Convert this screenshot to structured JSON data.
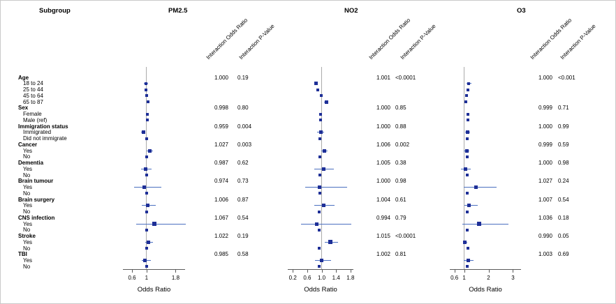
{
  "header": {
    "subgroup": "Subgroup",
    "col_or": "Interaction Odds Ratio",
    "col_p": "Interaction P-Value"
  },
  "colors": {
    "marker": "#1e2f97",
    "ci_line": "#4a6fc0",
    "reference_line": "#ababab",
    "axis": "#5a5a5a"
  },
  "chart_data": {
    "type": "forest",
    "panels": [
      {
        "id": "pm25",
        "title": "PM2.5",
        "xlabel": "Odds Ratio",
        "xlim": [
          0.35,
          2.06
        ],
        "refline": 1,
        "ticks": [
          {
            "v": 0.6,
            "label": "0.6"
          },
          {
            "v": 1,
            "label": "1"
          },
          {
            "v": 1.8,
            "label": "1.8"
          }
        ]
      },
      {
        "id": "no2",
        "title": "NO2",
        "xlabel": "Odds Ratio",
        "xlim": [
          0.06,
          1.88
        ],
        "refline": 1,
        "ticks": [
          {
            "v": 0.2,
            "label": "0.2"
          },
          {
            "v": 0.6,
            "label": "0.6"
          },
          {
            "v": 1.0,
            "label": "1.0"
          },
          {
            "v": 1.4,
            "label": "1.4"
          },
          {
            "v": 1.8,
            "label": "1.8"
          }
        ]
      },
      {
        "id": "o3",
        "title": "O3",
        "xlabel": "Odds Ratio",
        "xlim": [
          0.41,
          3.33
        ],
        "refline": 1,
        "ticks": [
          {
            "v": 0.6,
            "label": "0.6"
          },
          {
            "v": 1,
            "label": "1"
          },
          {
            "v": 2,
            "label": "2"
          },
          {
            "v": 3,
            "label": "3"
          }
        ]
      }
    ],
    "rows": [
      {
        "type": "group",
        "label": "Age",
        "stats": {
          "pm25": {
            "or": "1.000",
            "p": "0.19"
          },
          "no2": {
            "or": "1.001",
            "p": "<0.0001"
          },
          "o3": {
            "or": "1.000",
            "p": "<0.001"
          }
        }
      },
      {
        "type": "level",
        "label": "18 to 24",
        "points": {
          "pm25": [
            0.99,
            0.93,
            1.05,
            4
          ],
          "no2": [
            0.84,
            0.79,
            0.89,
            5
          ],
          "o3": [
            1.19,
            1.09,
            1.29,
            4
          ]
        }
      },
      {
        "type": "level",
        "label": "25 to 44",
        "points": {
          "pm25": [
            0.99,
            0.95,
            1.03,
            4
          ],
          "no2": [
            0.89,
            0.85,
            0.93,
            4
          ],
          "o3": [
            1.16,
            1.1,
            1.22,
            4
          ]
        }
      },
      {
        "type": "level",
        "label": "45 to 64",
        "points": {
          "pm25": [
            1.01,
            0.98,
            1.04,
            4
          ],
          "no2": [
            0.99,
            0.96,
            1.02,
            4
          ],
          "o3": [
            1.1,
            1.06,
            1.14,
            4
          ]
        }
      },
      {
        "type": "level",
        "label": "65 to 87",
        "points": {
          "pm25": [
            1.04,
            1.0,
            1.08,
            4
          ],
          "no2": [
            1.13,
            1.07,
            1.19,
            5
          ],
          "o3": [
            1.07,
            1.02,
            1.12,
            4
          ]
        }
      },
      {
        "type": "group",
        "label": "Sex",
        "stats": {
          "pm25": {
            "or": "0.998",
            "p": "0.80"
          },
          "no2": {
            "or": "1.000",
            "p": "0.85"
          },
          "o3": {
            "or": "0.999",
            "p": "0.71"
          }
        }
      },
      {
        "type": "level",
        "label": "Female",
        "points": {
          "pm25": [
            1.02,
            0.99,
            1.05,
            4
          ],
          "no2": [
            0.97,
            0.94,
            1.0,
            4
          ],
          "o3": [
            1.16,
            1.11,
            1.21,
            4
          ]
        }
      },
      {
        "type": "level",
        "label": "Male (ref)",
        "points": {
          "pm25": [
            1.02,
            0.99,
            1.05,
            4
          ],
          "no2": [
            0.97,
            0.94,
            1.0,
            4
          ],
          "o3": [
            1.16,
            1.11,
            1.21,
            4
          ]
        }
      },
      {
        "type": "group",
        "label": "Immigration status",
        "stats": {
          "pm25": {
            "or": "0.959",
            "p": "0.004"
          },
          "no2": {
            "or": "1.000",
            "p": "0.88"
          },
          "o3": {
            "or": "1.000",
            "p": "0.99"
          }
        }
      },
      {
        "type": "level",
        "label": "Immigrated",
        "points": {
          "pm25": [
            0.91,
            0.85,
            0.97,
            5
          ],
          "no2": [
            0.97,
            0.87,
            1.07,
            5
          ],
          "o3": [
            1.13,
            1.03,
            1.24,
            5
          ]
        }
      },
      {
        "type": "level",
        "label": "Did not immigrate",
        "points": {
          "pm25": [
            1.01,
            0.98,
            1.04,
            4
          ],
          "no2": [
            0.95,
            0.92,
            0.98,
            4
          ],
          "o3": [
            1.13,
            1.09,
            1.17,
            4
          ]
        }
      },
      {
        "type": "group",
        "label": "Cancer",
        "stats": {
          "pm25": {
            "or": "1.027",
            "p": "0.003"
          },
          "no2": {
            "or": "1.006",
            "p": "0.002"
          },
          "o3": {
            "or": "0.999",
            "p": "0.59"
          }
        }
      },
      {
        "type": "level",
        "label": "Yes",
        "points": {
          "pm25": [
            1.09,
            1.01,
            1.17,
            5
          ],
          "no2": [
            1.07,
            0.99,
            1.16,
            5
          ],
          "o3": [
            1.1,
            0.99,
            1.22,
            5
          ]
        }
      },
      {
        "type": "level",
        "label": "No",
        "points": {
          "pm25": [
            1.0,
            0.97,
            1.03,
            4
          ],
          "no2": [
            0.95,
            0.92,
            0.98,
            4
          ],
          "o3": [
            1.13,
            1.09,
            1.17,
            4
          ]
        }
      },
      {
        "type": "group",
        "label": "Dementia",
        "stats": {
          "pm25": {
            "or": "0.987",
            "p": "0.62"
          },
          "no2": {
            "or": "1.005",
            "p": "0.38"
          },
          "o3": {
            "or": "1.000",
            "p": "0.98"
          }
        }
      },
      {
        "type": "level",
        "label": "Yes",
        "points": {
          "pm25": [
            0.98,
            0.84,
            1.13,
            5
          ],
          "no2": [
            1.05,
            0.79,
            1.33,
            5
          ],
          "o3": [
            1.05,
            0.86,
            1.28,
            5
          ]
        }
      },
      {
        "type": "level",
        "label": "No",
        "points": {
          "pm25": [
            1.01,
            0.98,
            1.04,
            4
          ],
          "no2": [
            0.95,
            0.92,
            0.98,
            4
          ],
          "o3": [
            1.13,
            1.09,
            1.17,
            4
          ]
        }
      },
      {
        "type": "group",
        "label": "Brain tumour",
        "stats": {
          "pm25": {
            "or": "0.974",
            "p": "0.73"
          },
          "no2": {
            "or": "1.000",
            "p": "0.98"
          },
          "o3": {
            "or": "1.027",
            "p": "0.24"
          }
        }
      },
      {
        "type": "level",
        "label": "Yes",
        "points": {
          "pm25": [
            0.94,
            0.65,
            1.4,
            5
          ],
          "no2": [
            0.95,
            0.54,
            1.71,
            5
          ],
          "o3": [
            1.47,
            0.97,
            2.33,
            5
          ]
        }
      },
      {
        "type": "level",
        "label": "No",
        "points": {
          "pm25": [
            1.01,
            0.98,
            1.04,
            4
          ],
          "no2": [
            0.95,
            0.92,
            0.98,
            4
          ],
          "o3": [
            1.13,
            1.09,
            1.17,
            4
          ]
        }
      },
      {
        "type": "group",
        "label": "Brain surgery",
        "stats": {
          "pm25": {
            "or": "1.006",
            "p": "0.87"
          },
          "no2": {
            "or": "1.004",
            "p": "0.61"
          },
          "o3": {
            "or": "1.007",
            "p": "0.54"
          }
        }
      },
      {
        "type": "level",
        "label": "Yes",
        "points": {
          "pm25": [
            1.03,
            0.86,
            1.26,
            5
          ],
          "no2": [
            1.05,
            0.8,
            1.36,
            5
          ],
          "o3": [
            1.19,
            1.01,
            1.55,
            5
          ]
        }
      },
      {
        "type": "level",
        "label": "No",
        "points": {
          "pm25": [
            1.01,
            0.98,
            1.04,
            4
          ],
          "no2": [
            0.93,
            0.9,
            0.96,
            4
          ],
          "o3": [
            1.13,
            1.09,
            1.17,
            4
          ]
        }
      },
      {
        "type": "group",
        "label": "CNS infection",
        "stats": {
          "pm25": {
            "or": "1.067",
            "p": "0.54"
          },
          "no2": {
            "or": "0.994",
            "p": "0.79"
          },
          "o3": {
            "or": "1.036",
            "p": "0.18"
          }
        }
      },
      {
        "type": "level",
        "label": "Yes",
        "points": {
          "pm25": [
            1.21,
            0.71,
            2.08,
            6
          ],
          "no2": [
            0.87,
            0.43,
            1.83,
            5
          ],
          "o3": [
            1.62,
            0.93,
            2.82,
            6
          ]
        }
      },
      {
        "type": "level",
        "label": "No",
        "points": {
          "pm25": [
            1.01,
            0.98,
            1.04,
            4
          ],
          "no2": [
            0.93,
            0.9,
            0.96,
            4
          ],
          "o3": [
            1.13,
            1.09,
            1.17,
            4
          ]
        }
      },
      {
        "type": "group",
        "label": "Stroke",
        "stats": {
          "pm25": {
            "or": "1.022",
            "p": "0.19"
          },
          "no2": {
            "or": "1.015",
            "p": "<0.0001"
          },
          "o3": {
            "or": "0.990",
            "p": "0.05"
          }
        }
      },
      {
        "type": "level",
        "label": "Yes",
        "points": {
          "pm25": [
            1.06,
            0.96,
            1.17,
            5
          ],
          "no2": [
            1.24,
            1.09,
            1.46,
            6
          ],
          "o3": [
            1.03,
            0.94,
            1.13,
            5
          ]
        }
      },
      {
        "type": "level",
        "label": "No",
        "points": {
          "pm25": [
            1.01,
            0.98,
            1.04,
            4
          ],
          "no2": [
            0.93,
            0.9,
            0.96,
            4
          ],
          "o3": [
            1.16,
            1.12,
            1.2,
            4
          ]
        }
      },
      {
        "type": "group",
        "label": "TBI",
        "stats": {
          "pm25": {
            "or": "0.985",
            "p": "0.58"
          },
          "no2": {
            "or": "1.002",
            "p": "0.81"
          },
          "o3": {
            "or": "1.003",
            "p": "0.69"
          }
        }
      },
      {
        "type": "level",
        "label": "Yes",
        "points": {
          "pm25": [
            0.96,
            0.86,
            1.12,
            5
          ],
          "no2": [
            0.99,
            0.82,
            1.26,
            5
          ],
          "o3": [
            1.16,
            0.98,
            1.39,
            5
          ]
        }
      },
      {
        "type": "level",
        "label": "No",
        "points": {
          "pm25": [
            1.01,
            0.98,
            1.04,
            4
          ],
          "no2": [
            0.93,
            0.9,
            0.96,
            4
          ],
          "o3": [
            1.13,
            1.09,
            1.17,
            4
          ]
        }
      }
    ]
  }
}
